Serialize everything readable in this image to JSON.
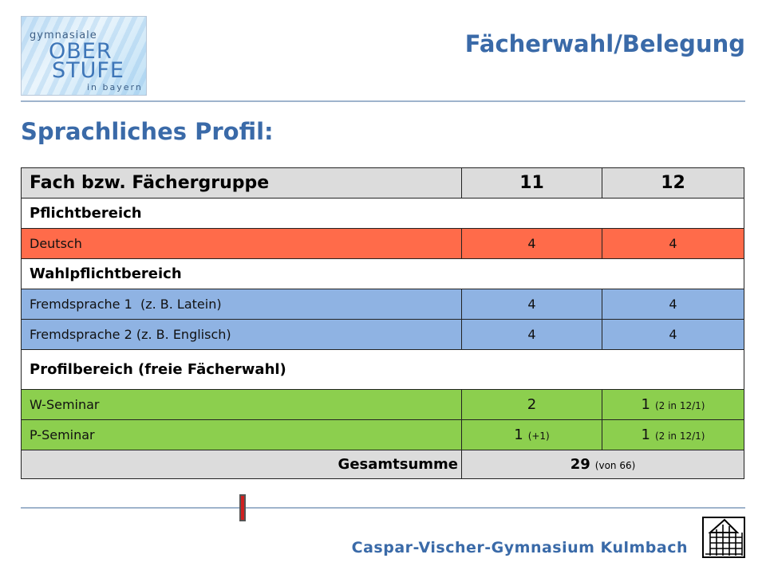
{
  "logo": {
    "line1": "gymnasiale",
    "line2": "OBER",
    "line3": "STUFE",
    "line4": "in bayern"
  },
  "header": {
    "title": "Fächerwahl/Belegung"
  },
  "subtitle": "Sprachliches Profil:",
  "table": {
    "headers": [
      "Fach bzw. Fächergruppe",
      "11",
      "12"
    ],
    "sections": {
      "pflicht": "Pflichtbereich",
      "wahlpflicht": "Wahlpflichtbereich",
      "profil": "Profilbereich (freie Fächerwahl)"
    },
    "rows": [
      {
        "fach": "Deutsch",
        "y11": "4",
        "y12": "4"
      },
      {
        "fach": "Fremdsprache 1  (z. B. Latein)",
        "y11": "4",
        "y12": "4"
      },
      {
        "fach": "Fremdsprache 2 (z. B. Englisch)",
        "y11": "4",
        "y12": "4"
      },
      {
        "fach": "W-Seminar",
        "y11": "2",
        "y11_note": "",
        "y12": "1",
        "y12_note": "(2 in 12/1)"
      },
      {
        "fach": "P-Seminar",
        "y11": "1",
        "y11_note": "(+1)",
        "y12": "1",
        "y12_note": "(2 in 12/1)"
      }
    ],
    "total": {
      "label": "Gesamtsumme",
      "value": "29",
      "note": "(von 66)"
    }
  },
  "footer": {
    "school": "Caspar-Vischer-Gymnasium  Kulmbach"
  },
  "colors": {
    "accent": "#3a6aa8",
    "pflicht": "#ff6b4a",
    "wahlpflicht": "#8fb3e3",
    "profil": "#8ccf4e",
    "header_bg": "#dcdcdc"
  },
  "icons": {
    "marker": "red-bar-marker",
    "school_logo": "building-icon"
  }
}
